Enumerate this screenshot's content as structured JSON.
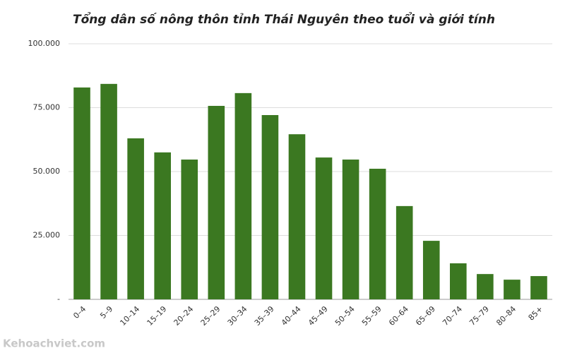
{
  "chart_data": {
    "type": "bar",
    "title": "Tổng dân số nông thôn tỉnh Thái Nguyên theo tuổi và giới tính",
    "categories": [
      "0–4",
      "5–9",
      "10–14",
      "15–19",
      "20–24",
      "25–29",
      "30–34",
      "35–39",
      "40–44",
      "45–49",
      "50–54",
      "55–59",
      "60–64",
      "65–69",
      "70–74",
      "75–79",
      "80–84",
      "85+"
    ],
    "values": [
      82900,
      84300,
      63000,
      57500,
      54700,
      75700,
      80700,
      72100,
      64600,
      55500,
      54700,
      51100,
      36500,
      22900,
      14100,
      9900,
      7700,
      9100
    ],
    "color": "#3b7821",
    "ylim": [
      0,
      100000
    ],
    "yticks": [
      {
        "value": 0,
        "label": "-"
      },
      {
        "value": 25000,
        "label": "25.000"
      },
      {
        "value": 50000,
        "label": "50.000"
      },
      {
        "value": 75000,
        "label": "75.000"
      },
      {
        "value": 100000,
        "label": "100.000"
      }
    ],
    "grid": true,
    "watermark": "Kehoachviet.com"
  }
}
